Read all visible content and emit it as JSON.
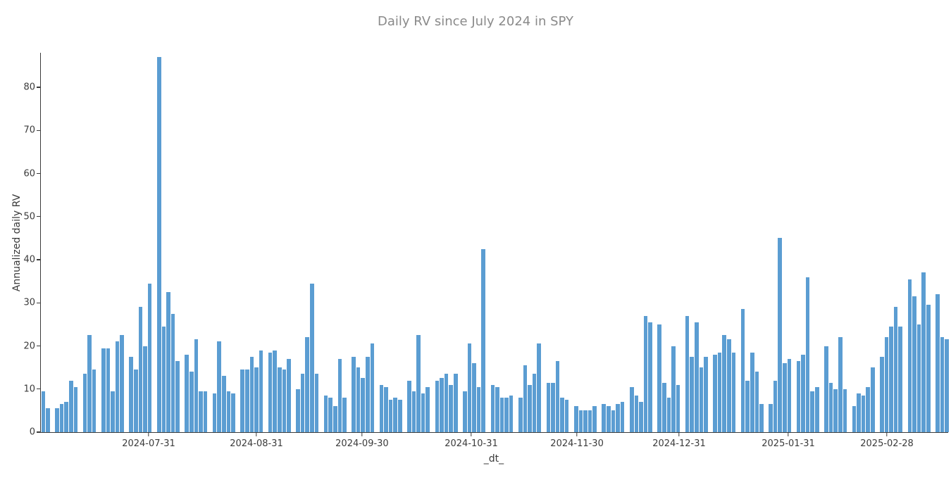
{
  "title": "Daily RV since July 2024 in SPY",
  "chart_data": {
    "type": "bar",
    "title": "Daily RV since July 2024 in SPY",
    "xlabel": "_dt_",
    "ylabel": "Annualized daily RV",
    "ylim": [
      0,
      88
    ],
    "grid": false,
    "legend": "none",
    "bar_color": "#5b9dd2",
    "yticks": [
      0,
      10,
      20,
      30,
      40,
      50,
      60,
      70,
      80
    ],
    "xticks": [
      {
        "label": "2024-07-31",
        "pos": 0.1188
      },
      {
        "label": "2024-08-31",
        "pos": 0.2376
      },
      {
        "label": "2024-09-30",
        "pos": 0.354
      },
      {
        "label": "2024-10-31",
        "pos": 0.4744
      },
      {
        "label": "2024-11-30",
        "pos": 0.5909
      },
      {
        "label": "2024-12-31",
        "pos": 0.7034
      },
      {
        "label": "2025-01-31",
        "pos": 0.8238
      },
      {
        "label": "2025-02-28",
        "pos": 0.9325
      }
    ],
    "values": [
      9.5,
      5.5,
      null,
      5.5,
      6.5,
      7,
      12,
      10.5,
      null,
      13.5,
      22.5,
      14.5,
      null,
      19.5,
      19.5,
      9.5,
      21,
      22.5,
      null,
      17.5,
      14.5,
      29,
      20,
      34.5,
      null,
      87,
      24.5,
      32.5,
      27.5,
      16.5,
      null,
      18,
      14,
      21.5,
      9.5,
      9.5,
      null,
      9,
      21,
      13,
      9.5,
      9,
      null,
      14.5,
      14.5,
      17.5,
      15,
      19,
      null,
      18.5,
      19,
      15,
      14.5,
      17,
      null,
      10,
      13.5,
      22,
      34.5,
      13.5,
      null,
      8.5,
      8,
      6,
      17,
      8,
      null,
      17.5,
      15,
      12.5,
      17.5,
      20.5,
      null,
      11,
      10.5,
      7.5,
      8,
      7.5,
      null,
      12,
      9.5,
      22.5,
      9,
      10.5,
      null,
      12,
      12.5,
      13.5,
      11,
      13.5,
      null,
      9.5,
      20.5,
      16,
      10.5,
      42.5,
      null,
      11,
      10.5,
      8,
      8,
      8.5,
      null,
      8,
      15.5,
      11,
      13.5,
      20.5,
      null,
      11.5,
      11.5,
      16.5,
      8,
      7.5,
      null,
      6,
      5,
      5,
      5,
      6,
      null,
      6.5,
      6,
      5,
      6.5,
      7,
      null,
      10.5,
      8.5,
      7,
      27,
      25.5,
      null,
      25,
      11.5,
      8,
      20,
      11,
      null,
      27,
      17.5,
      25.5,
      15,
      17.5,
      null,
      18,
      18.5,
      22.5,
      21.5,
      18.5,
      null,
      28.5,
      12,
      18.5,
      14,
      6.5,
      null,
      6.5,
      12,
      45,
      16,
      17,
      null,
      16.5,
      18,
      36,
      9.5,
      10.5,
      null,
      20,
      11.5,
      10,
      22,
      10,
      null,
      6,
      9,
      8.5,
      10.5,
      15,
      null,
      17.5,
      22,
      24.5,
      29,
      24.5,
      null,
      35.5,
      31.5,
      25,
      37,
      29.5,
      null,
      32,
      22,
      21.5
    ]
  }
}
